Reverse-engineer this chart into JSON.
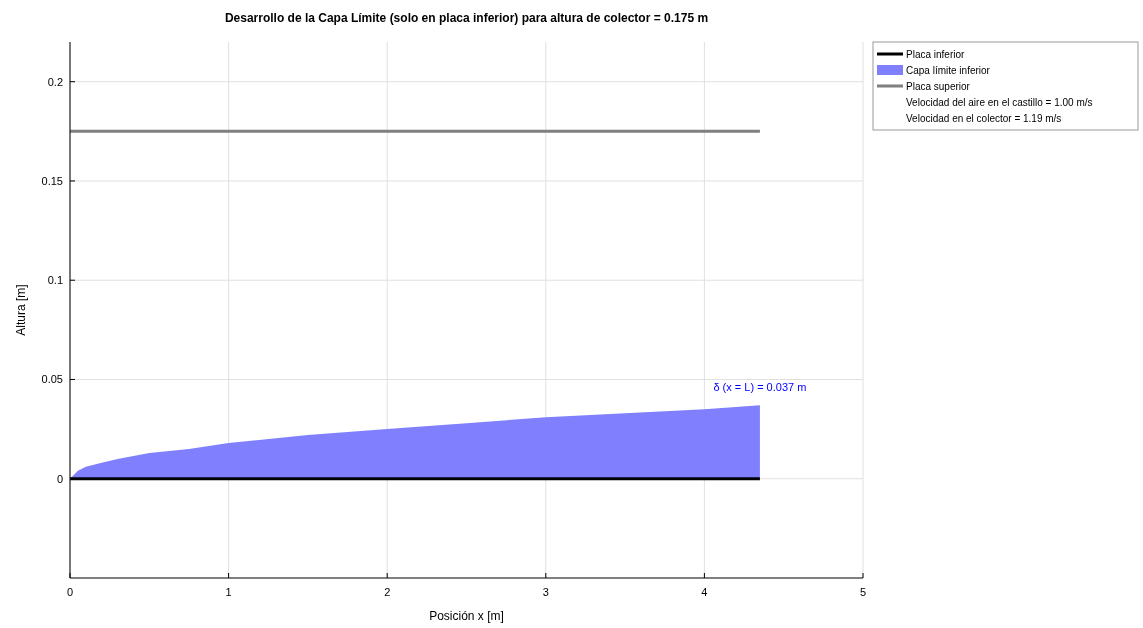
{
  "chart_data": {
    "type": "line",
    "title": "Desarrollo de la Capa Límite (solo en placa inferior) para altura de colector = 0.175 m",
    "xlabel": "Posición x [m]",
    "ylabel": "Altura [m]",
    "xlim": [
      0,
      5
    ],
    "xticks": [
      0,
      1,
      2,
      3,
      4,
      5
    ],
    "ylim": [
      -0.05,
      0.22
    ],
    "yticks": [
      0,
      0.05,
      0.1,
      0.15,
      0.2
    ],
    "grid": true,
    "legend": "top right",
    "series": [
      {
        "name": "Placa inferior",
        "color": "#000000",
        "x": [
          0,
          4.35
        ],
        "values": [
          0,
          0
        ]
      },
      {
        "name": "Capa límite inferior",
        "type": "area",
        "color": "#8080ff",
        "x": [
          0,
          0.05,
          0.1,
          0.2,
          0.3,
          0.5,
          0.75,
          1,
          1.5,
          2,
          2.5,
          3,
          3.5,
          4,
          4.35
        ],
        "values": [
          0,
          0.004,
          0.006,
          0.008,
          0.01,
          0.013,
          0.015,
          0.018,
          0.022,
          0.025,
          0.028,
          0.031,
          0.033,
          0.035,
          0.037
        ]
      },
      {
        "name": "Placa superior",
        "color": "#7f7f7f",
        "x": [
          0,
          4.35
        ],
        "values": [
          0.175,
          0.175
        ]
      }
    ],
    "annotations": [
      {
        "text": "δ (x = L) = 0.037 m",
        "x": 4.35,
        "y": 0.037
      },
      "Velocidad del aire en el castillo = 1.00 m/s",
      "Velocidad en el colector = 1.19 m/s"
    ]
  }
}
